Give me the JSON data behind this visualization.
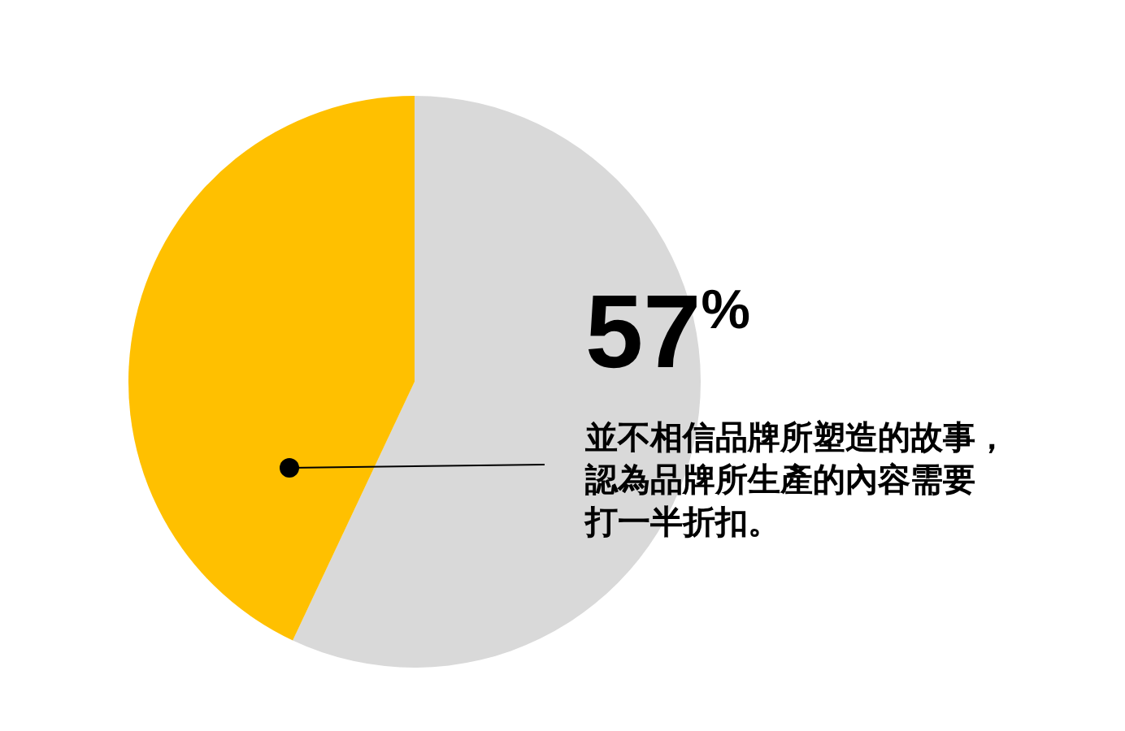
{
  "chart_data": {
    "type": "pie",
    "categories": [
      null,
      null
    ],
    "values": [
      57,
      43
    ],
    "colors": [
      "#d9d9d9",
      "#ffc000"
    ],
    "annotations": [
      "57$^{%}$",
      "並不相信品牌所塑造的故事，認為品牌所生產的內容需要打一半折扣。"
    ]
  }
}
